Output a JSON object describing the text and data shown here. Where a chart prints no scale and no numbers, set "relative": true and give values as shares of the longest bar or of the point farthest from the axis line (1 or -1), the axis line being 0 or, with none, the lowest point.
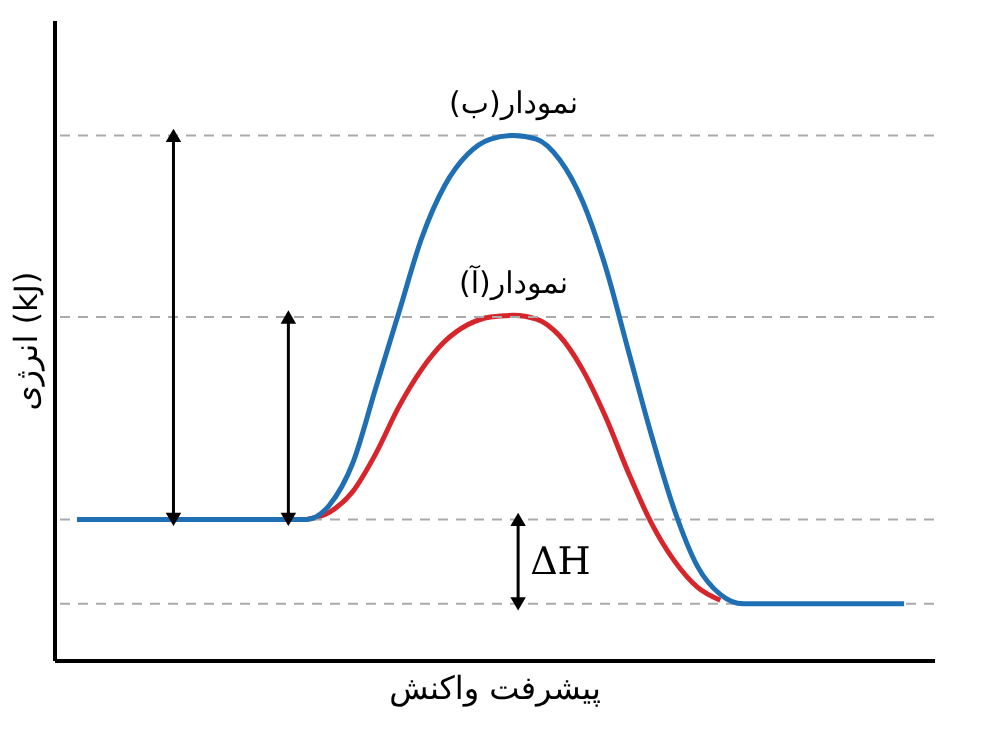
{
  "chart_data": {
    "type": "line",
    "relative": true,
    "xlabel": "پیشرفت واکنش",
    "ylabel": "انرژی (kJ)",
    "categories": [
      null,
      null,
      null,
      null,
      null,
      null,
      null,
      null,
      null,
      null,
      null,
      null,
      null,
      null,
      null,
      null,
      null,
      null,
      null,
      null,
      null,
      null,
      null,
      null,
      null,
      null,
      null,
      null,
      null,
      null,
      null,
      null,
      null,
      null,
      null,
      null,
      null
    ],
    "series": [
      {
        "name": "نمودار(ب)",
        "color": "#1f6fb5",
        "values": [
          0.268,
          0.268,
          0.268,
          0.268,
          0.268,
          0.268,
          0.268,
          0.268,
          0.268,
          0.268,
          0.268,
          0.296,
          0.375,
          0.518,
          0.661,
          0.804,
          0.904,
          0.964,
          0.993,
          1,
          0.993,
          0.954,
          0.875,
          0.75,
          0.589,
          0.429,
          0.286,
          0.179,
          0.125,
          0.107,
          0.107,
          0.107,
          0.107,
          0.107,
          0.107,
          0.107,
          0.107
        ]
      },
      {
        "name": "نمودار(آ)",
        "color": "#d7262b",
        "values": [
          null,
          null,
          null,
          null,
          null,
          null,
          null,
          null,
          null,
          null,
          0.268,
          0.282,
          0.321,
          0.393,
          0.482,
          0.554,
          0.607,
          0.639,
          0.654,
          0.657,
          0.65,
          0.618,
          0.554,
          0.464,
          0.357,
          0.261,
          0.189,
          0.139,
          0.114,
          null,
          null,
          null,
          null,
          null,
          null,
          null,
          null
        ]
      }
    ],
    "ref_lines": [
      {
        "axis": "y",
        "value": 1,
        "color": "#aaaaaa",
        "line_style": "dashed"
      },
      {
        "axis": "y",
        "value": 0.654,
        "color": "#aaaaaa",
        "line_style": "dashed"
      },
      {
        "axis": "y",
        "value": 0.268,
        "color": "#aaaaaa",
        "line_style": "dashed"
      },
      {
        "axis": "y",
        "value": 0.107,
        "color": "#aaaaaa",
        "line_style": "dashed"
      }
    ],
    "annotations": [
      "ΔH"
    ],
    "marker": "none",
    "line_style": "solid",
    "tick_labels": false
  }
}
